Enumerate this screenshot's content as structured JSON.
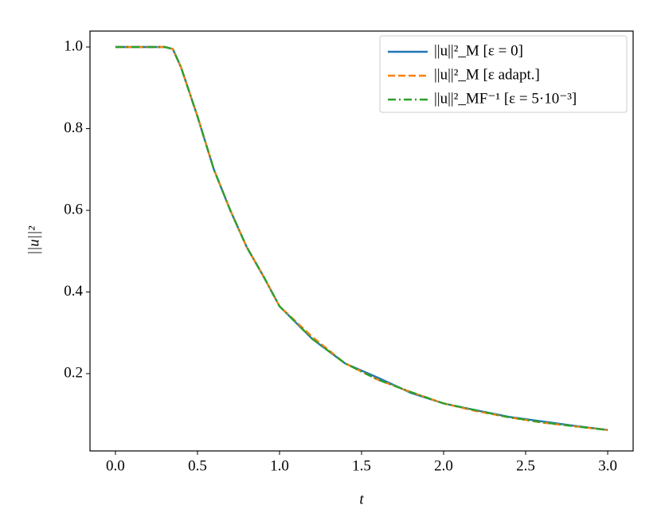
{
  "chart_data": {
    "type": "line",
    "x_label": "t",
    "y_label": "||u||²",
    "x": [
      0,
      0.1,
      0.2,
      0.3,
      0.35,
      0.4,
      0.5,
      0.6,
      0.7,
      0.8,
      0.9,
      1.0,
      1.2,
      1.4,
      1.6,
      1.8,
      2.0,
      2.2,
      2.4,
      2.6,
      2.8,
      3.0
    ],
    "series": [
      {
        "name": "||u||²_M [ε = 0]",
        "color": "#1f77b4",
        "dash": "solid",
        "values": [
          1,
          1,
          1,
          1,
          0.995,
          0.95,
          0.83,
          0.7,
          0.6,
          0.51,
          0.44,
          0.365,
          0.285,
          0.225,
          0.19,
          0.153,
          0.127,
          0.11,
          0.094,
          0.083,
          0.072,
          0.062
        ]
      },
      {
        "name": "||u||²_M [ε adapt.]",
        "color": "#ff7f0e",
        "dash": "dashed",
        "values": [
          1,
          1,
          1,
          1,
          0.995,
          0.95,
          0.83,
          0.7,
          0.6,
          0.51,
          0.44,
          0.365,
          0.29,
          0.225,
          0.185,
          0.155,
          0.127,
          0.108,
          0.093,
          0.08,
          0.071,
          0.062
        ]
      },
      {
        "name": "||u||²_MF⁻¹ [ε = 5·10⁻³]",
        "color": "#2ca02c",
        "dash": "dashdot",
        "values": [
          1,
          1,
          1,
          1,
          0.995,
          0.95,
          0.83,
          0.7,
          0.6,
          0.51,
          0.44,
          0.365,
          0.285,
          0.225,
          0.185,
          0.155,
          0.127,
          0.11,
          0.093,
          0.081,
          0.071,
          0.062
        ]
      }
    ],
    "xlim": [
      -0.155,
      3.155
    ],
    "xticks": [
      {
        "value": 0,
        "label": "0.0"
      },
      0.5,
      {
        "value": 1,
        "label": "1.0"
      },
      1.5,
      {
        "value": 2,
        "label": "2.0"
      },
      2.5,
      {
        "value": 3,
        "label": "3.0"
      }
    ],
    "ylim": [
      0.0107,
      1.039
    ],
    "yticks": [
      0.2,
      0.4,
      0.6,
      0.8,
      {
        "value": 1,
        "label": "1.0"
      }
    ],
    "grid": false,
    "legend": "upper right"
  }
}
